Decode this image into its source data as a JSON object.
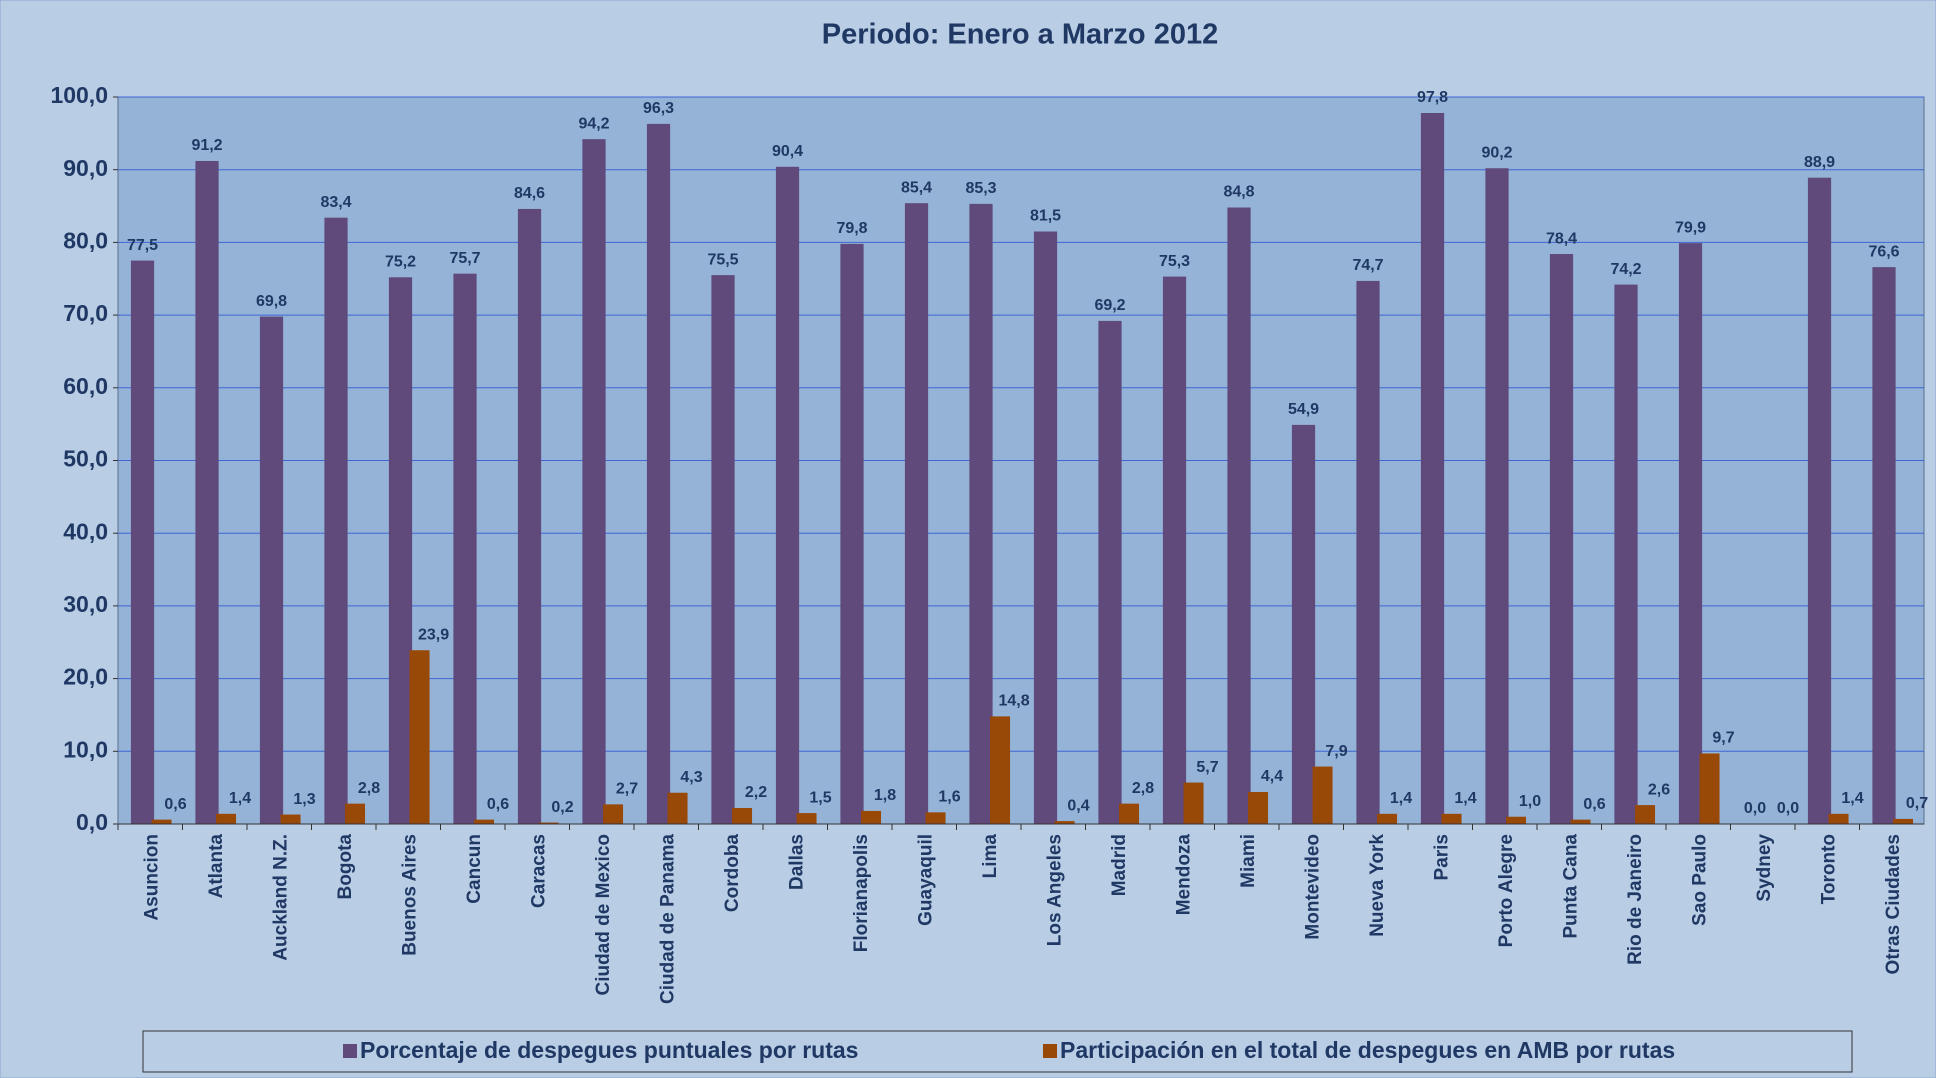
{
  "chart_data": {
    "type": "bar",
    "title": "Periodo: Enero  a  Marzo 2012",
    "categories": [
      "Asuncion",
      "Atlanta",
      "Auckland N.Z.",
      "Bogota",
      "Buenos Aires",
      "Cancun",
      "Caracas",
      "Ciudad de Mexico",
      "Ciudad de Panama",
      "Cordoba",
      "Dallas",
      "Florianapolis",
      "Guayaquil",
      "Lima",
      "Los Angeles",
      "Madrid",
      "Mendoza",
      "Miami",
      "Montevideo",
      "Nueva York",
      "Paris",
      "Porto Alegre",
      "Punta Cana",
      "Rio de Janeiro",
      "Sao Paulo",
      "Sydney",
      "Toronto",
      "Otras Ciudades"
    ],
    "series": [
      {
        "name": "Porcentaje de despegues puntuales por rutas",
        "color": "#604a7b",
        "values": [
          77.5,
          91.2,
          69.8,
          83.4,
          75.2,
          75.7,
          84.6,
          94.2,
          96.3,
          75.5,
          90.4,
          79.8,
          85.4,
          85.3,
          81.5,
          69.2,
          75.3,
          84.8,
          54.9,
          74.7,
          97.8,
          90.2,
          78.4,
          74.2,
          79.9,
          0.0,
          88.9,
          76.6
        ],
        "value_labels": [
          "77,5",
          "91,2",
          "69,8",
          "83,4",
          "75,2",
          "75,7",
          "84,6",
          "94,2",
          "96,3",
          "75,5",
          "90,4",
          "79,8",
          "85,4",
          "85,3",
          "81,5",
          "69,2",
          "75,3",
          "84,8",
          "54,9",
          "74,7",
          "97,8",
          "90,2",
          "78,4",
          "74,2",
          "79,9",
          "0,0",
          "88,9",
          "76,6"
        ]
      },
      {
        "name": "Participación en el total de despegues en AMB por rutas",
        "color": "#984807",
        "values": [
          0.6,
          1.4,
          1.3,
          2.8,
          23.9,
          0.6,
          0.2,
          2.7,
          4.3,
          2.2,
          1.5,
          1.8,
          1.6,
          14.8,
          0.4,
          2.8,
          5.7,
          4.4,
          7.9,
          1.4,
          1.4,
          1.0,
          0.6,
          2.6,
          9.7,
          0.0,
          1.4,
          0.7
        ],
        "value_labels": [
          "0,6",
          "1,4",
          "1,3",
          "2,8",
          "23,9",
          "0,6",
          "0,2",
          "2,7",
          "4,3",
          "2,2",
          "1,5",
          "1,8",
          "1,6",
          "14,8",
          "0,4",
          "2,8",
          "5,7",
          "4,4",
          "7,9",
          "1,4",
          "1,4",
          "1,0",
          "0,6",
          "2,6",
          "9,7",
          "0,0",
          "1,4",
          "0,7"
        ]
      }
    ],
    "ylim": [
      0,
      100
    ],
    "yticks": [
      {
        "value": 0,
        "label": "0,0"
      },
      {
        "value": 10,
        "label": "10,0"
      },
      {
        "value": 20,
        "label": "20,0"
      },
      {
        "value": 30,
        "label": "30,0"
      },
      {
        "value": 40,
        "label": "40,0"
      },
      {
        "value": 50,
        "label": "50,0"
      },
      {
        "value": 60,
        "label": "60,0"
      },
      {
        "value": 70,
        "label": "70,0"
      },
      {
        "value": 80,
        "label": "80,0"
      },
      {
        "value": 90,
        "label": "90,0"
      },
      {
        "value": 100,
        "label": "100,0"
      }
    ],
    "grid": true,
    "legend": "bottom"
  }
}
